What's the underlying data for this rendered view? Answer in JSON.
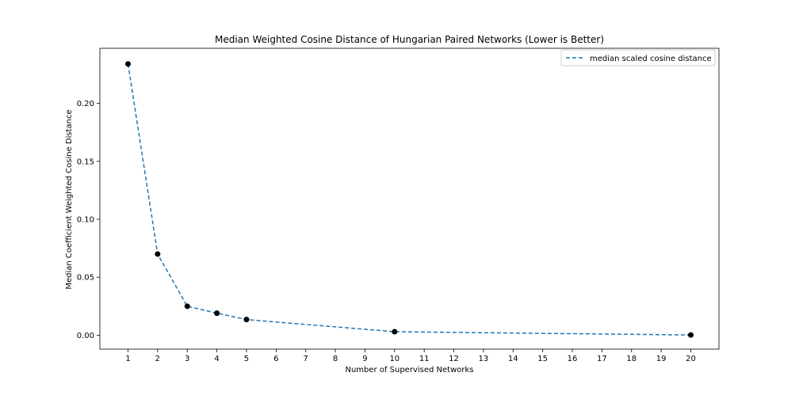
{
  "chart_data": {
    "type": "line",
    "title": "Median Weighted Cosine Distance of Hungarian Paired Networks (Lower is Better)",
    "xlabel": "Number of Supervised Networks",
    "ylabel": "Median Coefficient Weighted Cosine Distance",
    "x_ticks": [
      "1",
      "2",
      "3",
      "4",
      "5",
      "6",
      "7",
      "8",
      "9",
      "10",
      "11",
      "12",
      "13",
      "14",
      "15",
      "16",
      "17",
      "18",
      "19",
      "20"
    ],
    "y_ticks": [
      "0.00",
      "0.05",
      "0.10",
      "0.15",
      "0.20"
    ],
    "xlim": [
      0.05,
      20.95
    ],
    "ylim": [
      -0.012,
      0.2475
    ],
    "legend_position": "upper-right",
    "series": [
      {
        "name": "median scaled cosine distance",
        "color": "#1f77b4",
        "linestyle": "dashed",
        "marker_color": "#000000",
        "x": [
          1,
          2,
          3,
          4,
          5,
          10,
          20
        ],
        "y": [
          0.234,
          0.07,
          0.025,
          0.019,
          0.0135,
          0.003,
          0.0002
        ]
      }
    ]
  }
}
